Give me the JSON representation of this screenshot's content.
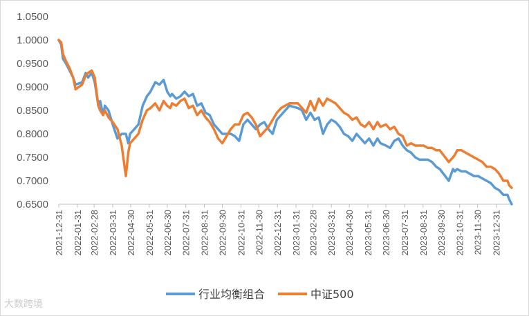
{
  "watermark": "大数跨境",
  "chart_data": {
    "type": "line",
    "title": "",
    "xlabel": "",
    "ylabel": "",
    "ylim": [
      0.65,
      1.05
    ],
    "yticks": [
      "1.0500",
      "1.0000",
      "0.9500",
      "0.9000",
      "0.8500",
      "0.8000",
      "0.7500",
      "0.7000",
      "0.6500"
    ],
    "x_start": "2021-12-31",
    "x_end": "2024-01-26",
    "xticks": [
      "2021-12-31",
      "2022-01-31",
      "2022-02-28",
      "2022-03-31",
      "2022-04-30",
      "2022-05-31",
      "2022-06-30",
      "2022-07-31",
      "2022-08-31",
      "2022-09-30",
      "2022-10-31",
      "2022-11-30",
      "2022-12-31",
      "2023-01-31",
      "2023-02-28",
      "2023-03-31",
      "2023-04-30",
      "2023-05-31",
      "2023-06-30",
      "2023-07-31",
      "2023-08-31",
      "2023-09-30",
      "2023-10-31",
      "2023-11-30",
      "2023-12-31"
    ],
    "grid": false,
    "legend_position": "bottom",
    "series": [
      {
        "name": "行业均衡组合",
        "color": "#5b9bd5",
        "x": [
          "2021-12-31",
          "2022-01-04",
          "2022-01-07",
          "2022-01-12",
          "2022-01-18",
          "2022-01-24",
          "2022-01-28",
          "2022-02-08",
          "2022-02-14",
          "2022-02-18",
          "2022-02-24",
          "2022-03-01",
          "2022-03-07",
          "2022-03-10",
          "2022-03-15",
          "2022-03-18",
          "2022-03-24",
          "2022-03-31",
          "2022-04-08",
          "2022-04-15",
          "2022-04-22",
          "2022-04-26",
          "2022-04-29",
          "2022-05-06",
          "2022-05-13",
          "2022-05-20",
          "2022-05-27",
          "2022-06-02",
          "2022-06-10",
          "2022-06-17",
          "2022-06-24",
          "2022-06-30",
          "2022-07-05",
          "2022-07-08",
          "2022-07-15",
          "2022-07-22",
          "2022-07-29",
          "2022-08-05",
          "2022-08-12",
          "2022-08-19",
          "2022-08-26",
          "2022-09-02",
          "2022-09-09",
          "2022-09-16",
          "2022-09-23",
          "2022-09-30",
          "2022-10-14",
          "2022-10-21",
          "2022-10-28",
          "2022-11-04",
          "2022-11-11",
          "2022-11-18",
          "2022-11-25",
          "2022-12-02",
          "2022-12-09",
          "2022-12-16",
          "2022-12-23",
          "2022-12-30",
          "2023-01-06",
          "2023-01-13",
          "2023-01-20",
          "2023-02-03",
          "2023-02-10",
          "2023-02-17",
          "2023-02-24",
          "2023-03-03",
          "2023-03-10",
          "2023-03-17",
          "2023-03-24",
          "2023-03-31",
          "2023-04-07",
          "2023-04-14",
          "2023-04-21",
          "2023-04-28",
          "2023-05-05",
          "2023-05-12",
          "2023-05-19",
          "2023-05-26",
          "2023-06-02",
          "2023-06-09",
          "2023-06-16",
          "2023-06-21",
          "2023-06-30",
          "2023-07-07",
          "2023-07-14",
          "2023-07-21",
          "2023-07-28",
          "2023-08-04",
          "2023-08-11",
          "2023-08-18",
          "2023-08-25",
          "2023-09-01",
          "2023-09-08",
          "2023-09-15",
          "2023-09-22",
          "2023-09-28",
          "2023-10-13",
          "2023-10-20",
          "2023-10-23",
          "2023-10-27",
          "2023-11-03",
          "2023-11-10",
          "2023-11-17",
          "2023-11-24",
          "2023-12-01",
          "2023-12-08",
          "2023-12-15",
          "2023-12-22",
          "2023-12-29",
          "2024-01-05",
          "2024-01-12",
          "2024-01-19",
          "2024-01-22",
          "2024-01-26"
        ],
        "values": [
          1.0,
          0.99,
          0.96,
          0.95,
          0.935,
          0.92,
          0.905,
          0.91,
          0.93,
          0.92,
          0.93,
          0.91,
          0.86,
          0.87,
          0.84,
          0.86,
          0.85,
          0.82,
          0.79,
          0.8,
          0.8,
          0.78,
          0.8,
          0.81,
          0.82,
          0.86,
          0.88,
          0.89,
          0.91,
          0.905,
          0.915,
          0.89,
          0.88,
          0.885,
          0.875,
          0.88,
          0.89,
          0.88,
          0.885,
          0.86,
          0.865,
          0.845,
          0.84,
          0.82,
          0.81,
          0.8,
          0.8,
          0.795,
          0.785,
          0.82,
          0.83,
          0.82,
          0.81,
          0.82,
          0.825,
          0.81,
          0.8,
          0.83,
          0.84,
          0.85,
          0.86,
          0.855,
          0.85,
          0.83,
          0.845,
          0.83,
          0.835,
          0.8,
          0.82,
          0.83,
          0.825,
          0.815,
          0.8,
          0.795,
          0.785,
          0.8,
          0.79,
          0.78,
          0.79,
          0.775,
          0.79,
          0.78,
          0.775,
          0.77,
          0.785,
          0.79,
          0.775,
          0.765,
          0.76,
          0.75,
          0.745,
          0.745,
          0.745,
          0.74,
          0.73,
          0.725,
          0.7,
          0.725,
          0.72,
          0.725,
          0.72,
          0.72,
          0.715,
          0.71,
          0.71,
          0.705,
          0.7,
          0.695,
          0.685,
          0.68,
          0.67,
          0.67,
          0.66,
          0.65
        ]
      },
      {
        "name": "中证500",
        "color": "#ed7d31",
        "x": [
          "2021-12-31",
          "2022-01-04",
          "2022-01-07",
          "2022-01-12",
          "2022-01-18",
          "2022-01-24",
          "2022-01-28",
          "2022-02-08",
          "2022-02-14",
          "2022-02-18",
          "2022-02-24",
          "2022-03-01",
          "2022-03-07",
          "2022-03-10",
          "2022-03-15",
          "2022-03-18",
          "2022-03-24",
          "2022-03-31",
          "2022-04-08",
          "2022-04-15",
          "2022-04-22",
          "2022-04-26",
          "2022-04-29",
          "2022-05-06",
          "2022-05-13",
          "2022-05-20",
          "2022-05-27",
          "2022-06-02",
          "2022-06-10",
          "2022-06-17",
          "2022-06-24",
          "2022-06-30",
          "2022-07-05",
          "2022-07-08",
          "2022-07-15",
          "2022-07-22",
          "2022-07-29",
          "2022-08-05",
          "2022-08-12",
          "2022-08-19",
          "2022-08-26",
          "2022-09-02",
          "2022-09-09",
          "2022-09-16",
          "2022-09-23",
          "2022-09-30",
          "2022-10-14",
          "2022-10-21",
          "2022-10-28",
          "2022-11-04",
          "2022-11-11",
          "2022-11-18",
          "2022-11-25",
          "2022-12-02",
          "2022-12-09",
          "2022-12-16",
          "2022-12-23",
          "2022-12-30",
          "2023-01-06",
          "2023-01-13",
          "2023-01-20",
          "2023-02-03",
          "2023-02-10",
          "2023-02-17",
          "2023-02-24",
          "2023-03-03",
          "2023-03-10",
          "2023-03-17",
          "2023-03-24",
          "2023-03-31",
          "2023-04-07",
          "2023-04-14",
          "2023-04-21",
          "2023-04-28",
          "2023-05-05",
          "2023-05-12",
          "2023-05-19",
          "2023-05-26",
          "2023-06-02",
          "2023-06-09",
          "2023-06-16",
          "2023-06-21",
          "2023-06-30",
          "2023-07-07",
          "2023-07-14",
          "2023-07-21",
          "2023-07-28",
          "2023-08-04",
          "2023-08-11",
          "2023-08-18",
          "2023-08-25",
          "2023-09-01",
          "2023-09-08",
          "2023-09-15",
          "2023-09-22",
          "2023-09-28",
          "2023-10-13",
          "2023-10-20",
          "2023-10-23",
          "2023-10-27",
          "2023-11-03",
          "2023-11-10",
          "2023-11-17",
          "2023-11-24",
          "2023-12-01",
          "2023-12-08",
          "2023-12-15",
          "2023-12-22",
          "2023-12-29",
          "2024-01-05",
          "2024-01-12",
          "2024-01-19",
          "2024-01-22",
          "2024-01-26"
        ],
        "values": [
          1.0,
          0.995,
          0.97,
          0.955,
          0.94,
          0.92,
          0.895,
          0.905,
          0.925,
          0.93,
          0.935,
          0.92,
          0.86,
          0.85,
          0.84,
          0.85,
          0.835,
          0.825,
          0.81,
          0.775,
          0.71,
          0.76,
          0.78,
          0.79,
          0.8,
          0.83,
          0.85,
          0.855,
          0.865,
          0.85,
          0.87,
          0.86,
          0.855,
          0.865,
          0.86,
          0.87,
          0.875,
          0.855,
          0.86,
          0.84,
          0.85,
          0.835,
          0.825,
          0.81,
          0.79,
          0.78,
          0.81,
          0.82,
          0.82,
          0.84,
          0.845,
          0.835,
          0.82,
          0.795,
          0.805,
          0.815,
          0.83,
          0.845,
          0.855,
          0.86,
          0.865,
          0.865,
          0.855,
          0.845,
          0.87,
          0.85,
          0.875,
          0.86,
          0.875,
          0.87,
          0.865,
          0.855,
          0.845,
          0.84,
          0.83,
          0.835,
          0.82,
          0.815,
          0.825,
          0.81,
          0.825,
          0.815,
          0.82,
          0.81,
          0.815,
          0.8,
          0.795,
          0.775,
          0.78,
          0.775,
          0.775,
          0.775,
          0.77,
          0.77,
          0.765,
          0.765,
          0.74,
          0.75,
          0.755,
          0.765,
          0.765,
          0.76,
          0.755,
          0.75,
          0.745,
          0.74,
          0.73,
          0.73,
          0.725,
          0.715,
          0.7,
          0.7,
          0.69,
          0.685
        ]
      }
    ]
  }
}
